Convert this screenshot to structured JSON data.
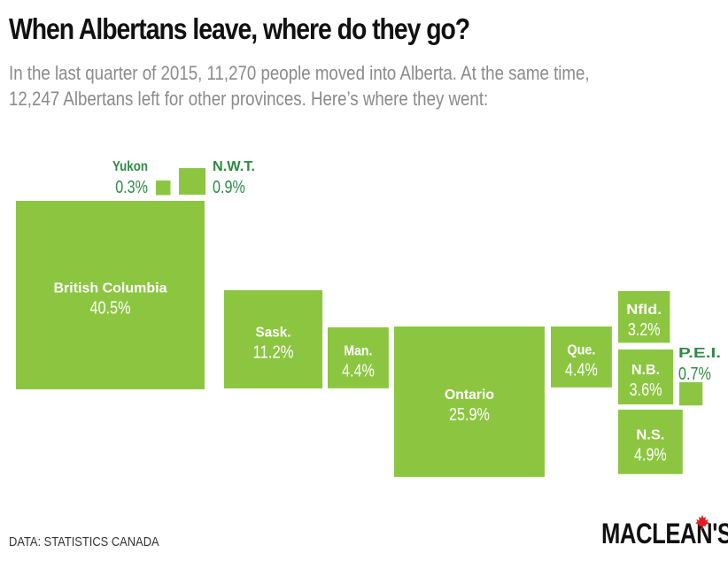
{
  "title": "When Albertans leave, where do they go?",
  "subtitle_lines": [
    "In the last quarter of 2015, 11,270 people moved into Alberta. At the same time,",
    "12,247 Albertans left for other provinces. Here’s where they went:"
  ],
  "source": "DATA: STATISTICS CANADA",
  "logo": "MACLEAN'S",
  "colors": {
    "box_fill": "#8cc641",
    "box_stroke": "#ffffff",
    "label_inside": "#ffffff",
    "label_outside": "#2f8a45"
  },
  "chart_data": {
    "type": "proportional-area",
    "unit": "%",
    "categories": [
      "British Columbia",
      "Sask.",
      "Man.",
      "Ontario",
      "Que.",
      "Nfld.",
      "N.B.",
      "N.S.",
      "P.E.I.",
      "Yukon",
      "N.W.T."
    ],
    "values": [
      40.5,
      11.2,
      4.4,
      25.9,
      4.4,
      3.2,
      3.6,
      4.9,
      0.7,
      0.3,
      0.9
    ],
    "value_labels": [
      "40.5%",
      "11.2%",
      "4.4%",
      "25.9%",
      "4.4%",
      "3.2%",
      "3.6%",
      "4.9%",
      "0.7%",
      "0.3%",
      "0.9%"
    ]
  }
}
